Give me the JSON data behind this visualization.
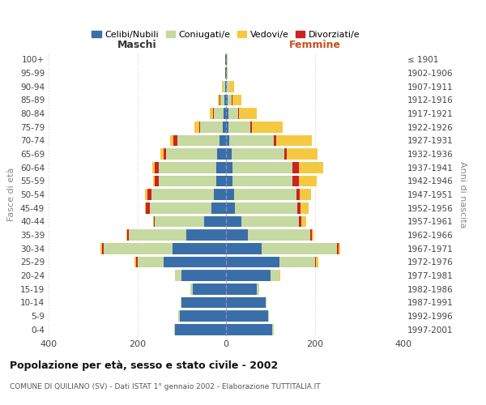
{
  "age_groups": [
    "0-4",
    "5-9",
    "10-14",
    "15-19",
    "20-24",
    "25-29",
    "30-34",
    "35-39",
    "40-44",
    "45-49",
    "50-54",
    "55-59",
    "60-64",
    "65-69",
    "70-74",
    "75-79",
    "80-84",
    "85-89",
    "90-94",
    "95-99",
    "100+"
  ],
  "birth_years": [
    "1997-2001",
    "1992-1996",
    "1987-1991",
    "1982-1986",
    "1977-1981",
    "1972-1976",
    "1967-1971",
    "1962-1966",
    "1957-1961",
    "1952-1956",
    "1947-1951",
    "1942-1946",
    "1937-1941",
    "1932-1936",
    "1927-1931",
    "1922-1926",
    "1917-1921",
    "1912-1916",
    "1907-1911",
    "1902-1906",
    "≤ 1901"
  ],
  "males": {
    "celibi": [
      115,
      105,
      100,
      75,
      100,
      140,
      120,
      90,
      50,
      32,
      28,
      22,
      22,
      20,
      15,
      8,
      5,
      3,
      2,
      1,
      1
    ],
    "coniugati": [
      2,
      3,
      2,
      5,
      15,
      60,
      155,
      130,
      110,
      140,
      140,
      130,
      130,
      115,
      95,
      50,
      22,
      10,
      5,
      1,
      1
    ],
    "vedovi": [
      0,
      0,
      0,
      0,
      0,
      3,
      3,
      2,
      2,
      3,
      5,
      5,
      7,
      8,
      8,
      12,
      8,
      5,
      2,
      0,
      0
    ],
    "divorziati": [
      0,
      0,
      0,
      0,
      0,
      3,
      5,
      3,
      3,
      8,
      10,
      8,
      8,
      5,
      8,
      2,
      2,
      1,
      0,
      0,
      0
    ]
  },
  "females": {
    "nubili": [
      105,
      95,
      90,
      70,
      100,
      120,
      80,
      50,
      35,
      20,
      18,
      15,
      15,
      12,
      8,
      5,
      5,
      3,
      2,
      1,
      1
    ],
    "coniugate": [
      2,
      2,
      2,
      5,
      20,
      80,
      170,
      140,
      130,
      140,
      140,
      135,
      135,
      120,
      100,
      50,
      22,
      10,
      5,
      1,
      1
    ],
    "vedove": [
      0,
      0,
      0,
      0,
      2,
      5,
      5,
      5,
      10,
      18,
      25,
      40,
      55,
      70,
      80,
      70,
      40,
      20,
      10,
      1,
      1
    ],
    "divorziate": [
      0,
      0,
      0,
      0,
      0,
      3,
      3,
      3,
      5,
      8,
      8,
      15,
      15,
      5,
      5,
      3,
      3,
      2,
      1,
      0,
      0
    ]
  },
  "colors": {
    "celibi": "#3a6ea8",
    "coniugati": "#c5d9a0",
    "vedovi": "#f5c842",
    "divorziati": "#cc2222"
  },
  "title": "Popolazione per età, sesso e stato civile - 2002",
  "subtitle": "COMUNE DI QUILIANO (SV) - Dati ISTAT 1° gennaio 2002 - Elaborazione TUTTITALIA.IT",
  "xlabel_left": "Maschi",
  "xlabel_right": "Femmine",
  "ylabel_left": "Fasce di età",
  "ylabel_right": "Anni di nascita",
  "xlim": 400,
  "bg_color": "#ffffff",
  "grid_color": "#cccccc",
  "legend_labels": [
    "Celibi/Nubili",
    "Coniugati/e",
    "Vedovi/e",
    "Divorziati/e"
  ]
}
